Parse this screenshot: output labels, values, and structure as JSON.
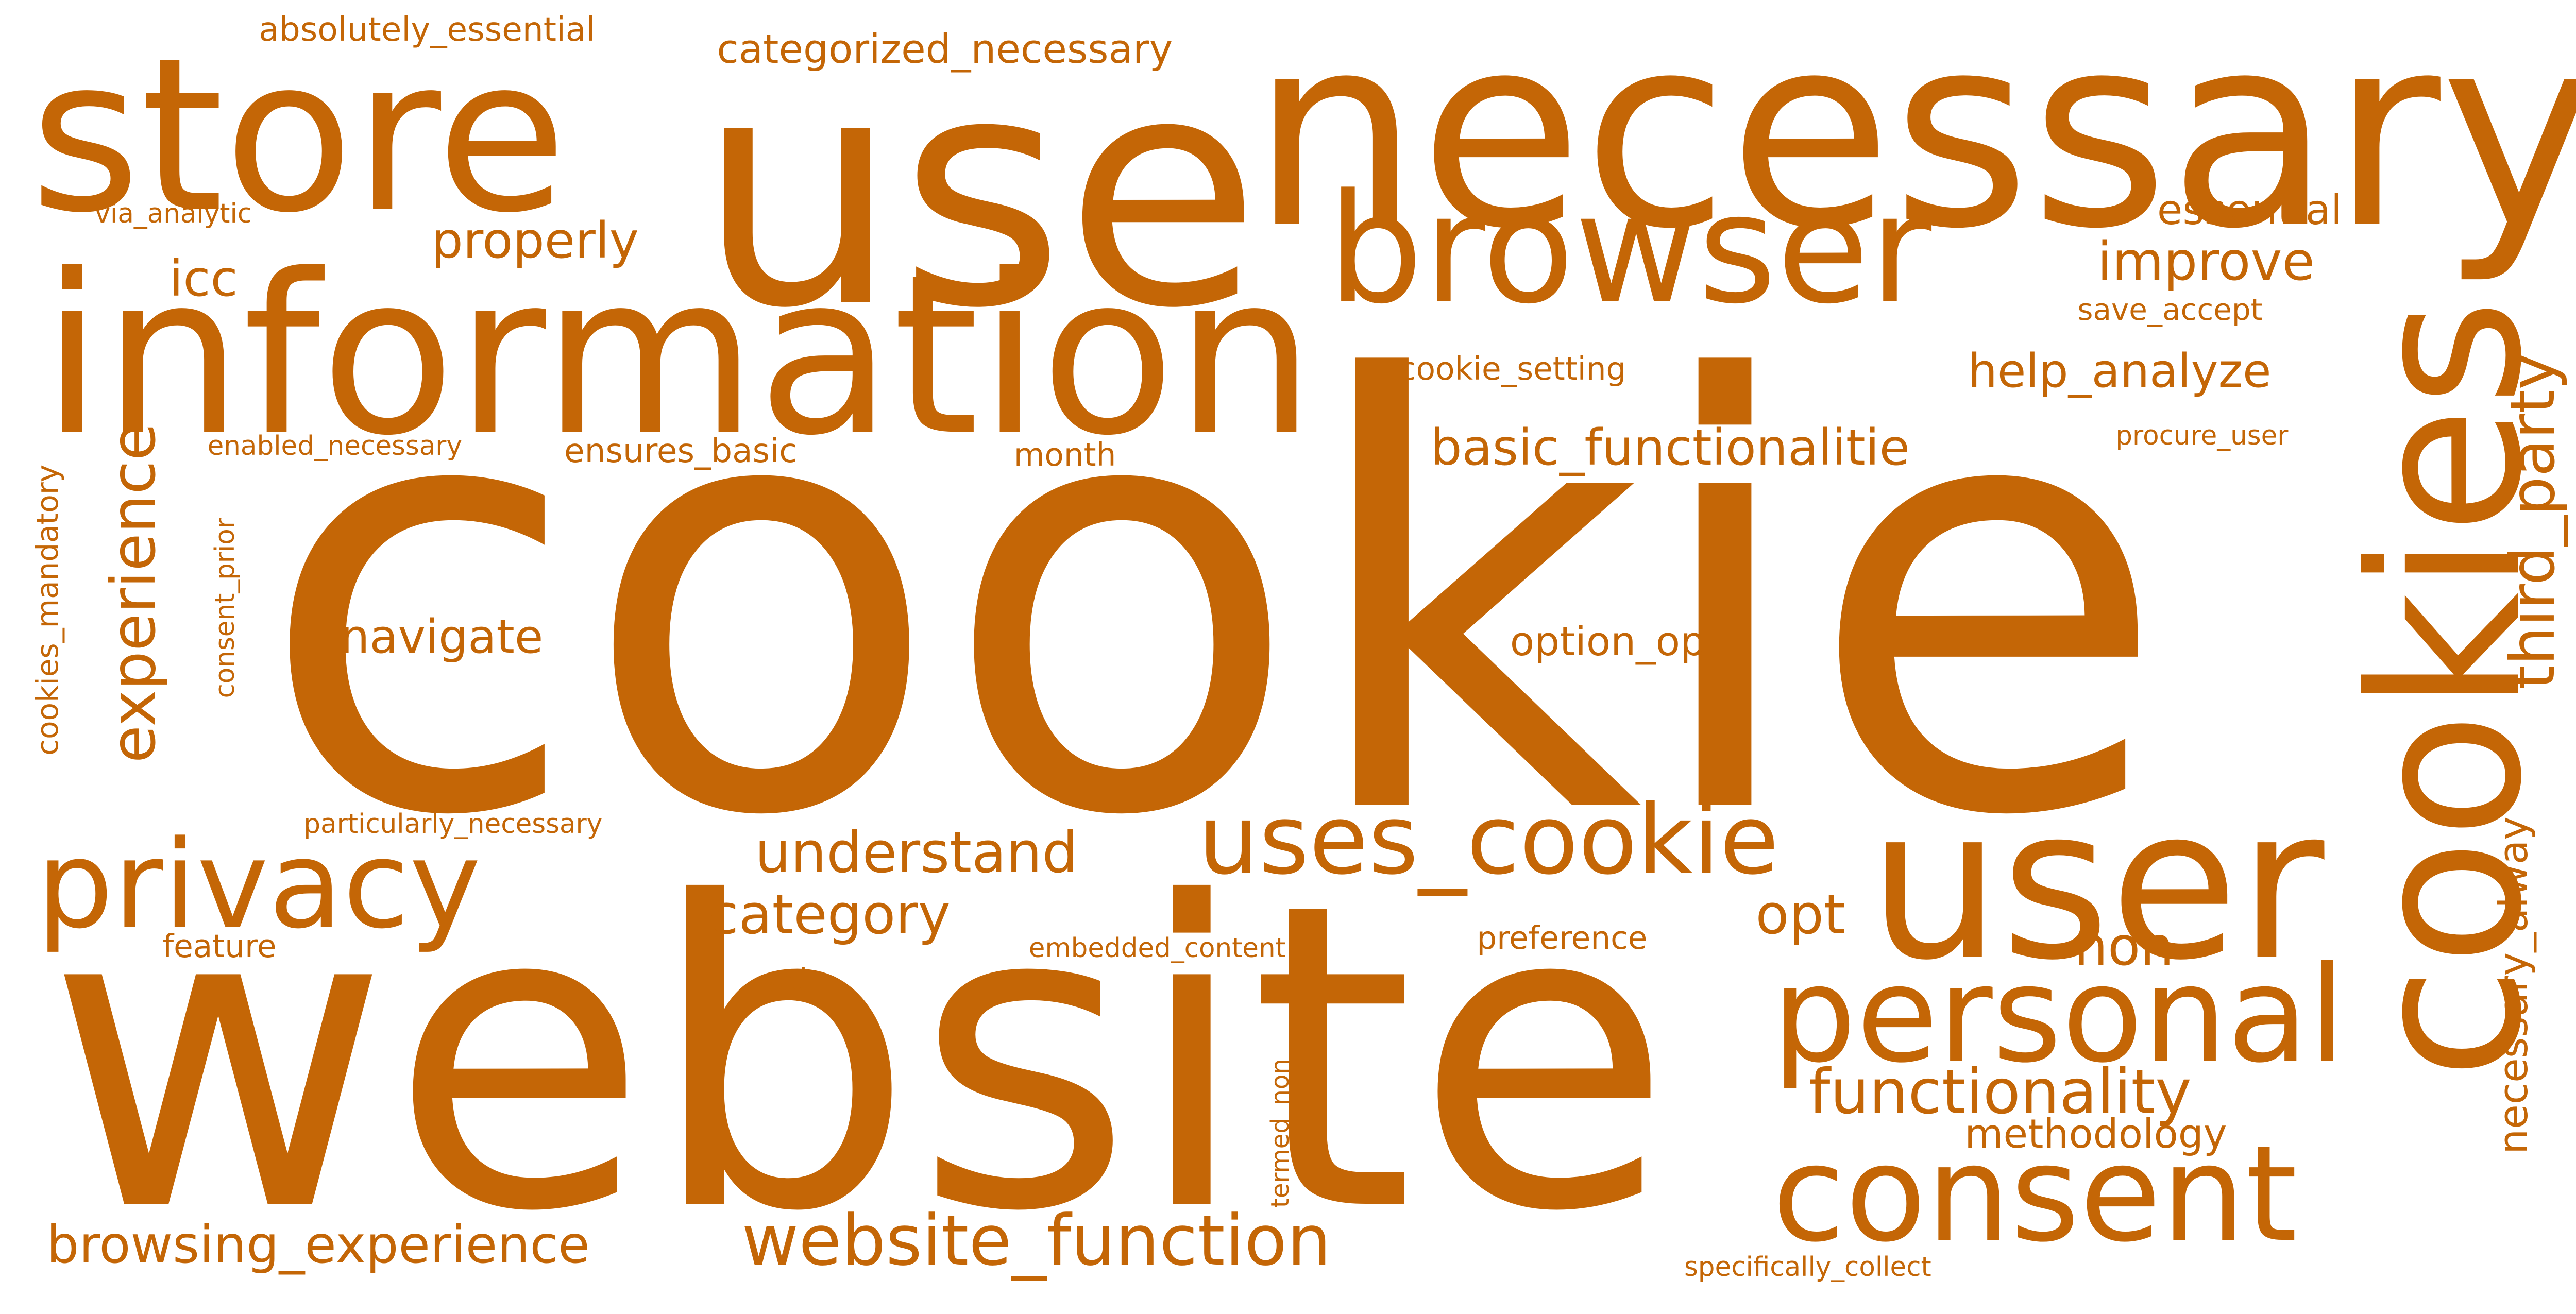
{
  "word_color": "#C46606",
  "background_color": "#FFFFFF",
  "words": {
    "cookie": "cookie",
    "website": "website",
    "use": "use",
    "necessary": "necessary",
    "store": "store",
    "information": "information",
    "user": "user",
    "cookies": "cookies",
    "browser": "browser",
    "personal": "personal",
    "consent": "consent",
    "privacy": "privacy",
    "uses_cookie": "uses_cookie",
    "website_function": "website_function",
    "browsing_experience": "browsing_experience",
    "functionality": "functionality",
    "experience": "experience",
    "third_party": "third_party",
    "understand": "understand",
    "category": "category",
    "basic_functionalitie": "basic_functionalitie",
    "help_analyze": "help_analyze",
    "improve": "improve",
    "icc": "icc",
    "navigate": "navigate",
    "properly": "properly",
    "opt": "opt",
    "non": "non",
    "essential": "essential",
    "categorized_necessary": "categorized_necessary",
    "absolutely_essential": "absolutely_essential",
    "option_opt": "option_opt",
    "methodology": "methodology",
    "necessary_alway": "necessary_alway",
    "ensures_basic": "ensures_basic",
    "cookie_setting": "cookie_setting",
    "save_accept": "save_accept",
    "procure_user": "procure_user",
    "month": "month",
    "enabled_necessary": "enabled_necessary",
    "cookies_mandatory": "cookies_mandatory",
    "consent_prior": "consent_prior",
    "via_analytic": "via_analytic",
    "particularly_necessary": "particularly_necessary",
    "feature": "feature",
    "embedded_content": "embedded_content",
    "preference": "preference",
    "ad": "ad",
    "termed_non": "termed_non",
    "specifically_collect": "specifically_collect"
  }
}
